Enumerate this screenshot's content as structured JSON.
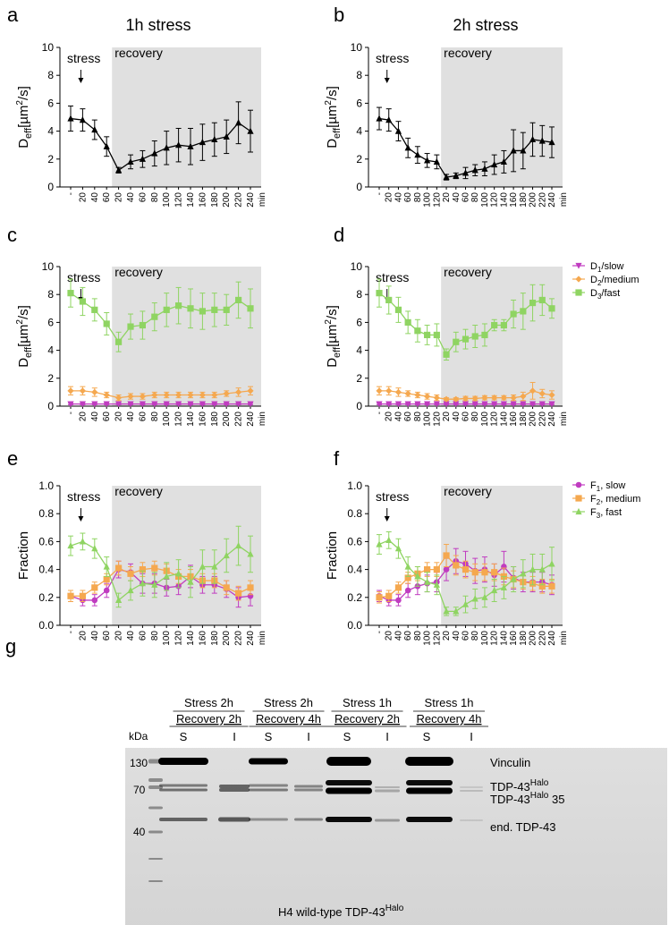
{
  "labels": {
    "a": "a",
    "b": "b",
    "c": "c",
    "d": "d",
    "e": "e",
    "f": "f",
    "g": "g",
    "title_1h": "1h stress",
    "title_2h": "2h stress",
    "stress": "stress",
    "recovery": "recovery",
    "ylabel_deff": "D",
    "ylabel_deff_sub": "eff",
    "ylabel_deff_unit": "[µm",
    "ylabel_deff_sup": "2",
    "ylabel_deff_tail": "/s]",
    "ylabel_fraction": "Fraction",
    "min": "min"
  },
  "legend_d": [
    {
      "pre": "D",
      "sub": "1",
      "post": "/slow",
      "color": "#c03cc0",
      "marker": "tri-down"
    },
    {
      "pre": "D",
      "sub": "2",
      "post": "/medium",
      "color": "#f5a84f",
      "marker": "diamond"
    },
    {
      "pre": "D",
      "sub": "3",
      "post": "/fast",
      "color": "#8fd462",
      "marker": "square"
    }
  ],
  "legend_f": [
    {
      "pre": "F",
      "sub": "1",
      "post": ", slow",
      "color": "#c03cc0",
      "marker": "circle"
    },
    {
      "pre": "F",
      "sub": "2",
      "post": ", medium",
      "color": "#f5a84f",
      "marker": "square"
    },
    {
      "pre": "F",
      "sub": "3",
      "post": ", fast",
      "color": "#8fd462",
      "marker": "triangle"
    }
  ],
  "colors": {
    "black": "#000000",
    "magenta": "#c03cc0",
    "orange": "#f5a84f",
    "green": "#8fd462",
    "shade": "#e0e0e0"
  },
  "chart_data": [
    {
      "id": "a",
      "type": "line",
      "title": "1h stress",
      "ylabel": "Deff[µm2/s]",
      "ylim": [
        0,
        10
      ],
      "yticks": [
        0,
        2,
        4,
        6,
        8,
        10
      ],
      "xticks": [
        "-",
        "20",
        "40",
        "60",
        "20",
        "40",
        "60",
        "80",
        "100",
        "120",
        "140",
        "160",
        "180",
        "200",
        "220",
        "240"
      ],
      "recovery_start_index": 3,
      "series": [
        {
          "name": "Deff",
          "color": "#000000",
          "marker": "triangle",
          "values": [
            4.9,
            4.8,
            4.1,
            2.9,
            1.2,
            1.8,
            2.0,
            2.4,
            2.8,
            3.0,
            2.9,
            3.2,
            3.4,
            3.6,
            4.6,
            4.0
          ],
          "errors": [
            0.9,
            0.8,
            0.7,
            0.7,
            0.2,
            0.5,
            0.6,
            0.9,
            1.2,
            1.2,
            1.3,
            1.3,
            1.2,
            1.2,
            1.5,
            1.5
          ]
        }
      ]
    },
    {
      "id": "b",
      "type": "line",
      "title": "2h stress",
      "ylabel": "Deff[µm2/s]",
      "ylim": [
        0,
        10
      ],
      "yticks": [
        0,
        2,
        4,
        6,
        8,
        10
      ],
      "xticks": [
        "-",
        "20",
        "40",
        "60",
        "80",
        "100",
        "120",
        "20",
        "40",
        "60",
        "80",
        "100",
        "120",
        "140",
        "160",
        "180",
        "200",
        "220",
        "240"
      ],
      "recovery_start_index": 6,
      "series": [
        {
          "name": "Deff",
          "color": "#000000",
          "marker": "triangle",
          "values": [
            4.9,
            4.8,
            4.0,
            2.8,
            2.3,
            1.9,
            1.8,
            0.7,
            0.8,
            1.0,
            1.2,
            1.3,
            1.6,
            1.8,
            2.6,
            2.6,
            3.4,
            3.3,
            3.2
          ],
          "errors": [
            0.8,
            0.8,
            0.7,
            0.7,
            0.6,
            0.5,
            0.5,
            0.2,
            0.2,
            0.4,
            0.4,
            0.5,
            0.7,
            0.8,
            1.5,
            1.3,
            1.2,
            1.1,
            1.1
          ]
        }
      ]
    },
    {
      "id": "c",
      "type": "line",
      "ylabel": "Deff[µm2/s]",
      "ylim": [
        0,
        10
      ],
      "yticks": [
        0,
        2,
        4,
        6,
        8,
        10
      ],
      "xticks": [
        "-",
        "20",
        "40",
        "60",
        "20",
        "40",
        "60",
        "80",
        "100",
        "120",
        "140",
        "160",
        "180",
        "200",
        "220",
        "240"
      ],
      "recovery_start_index": 3,
      "series": [
        {
          "name": "D1/slow",
          "color": "#c03cc0",
          "marker": "tri-down",
          "values": [
            0.15,
            0.15,
            0.15,
            0.15,
            0.15,
            0.15,
            0.15,
            0.15,
            0.15,
            0.15,
            0.15,
            0.15,
            0.15,
            0.15,
            0.15,
            0.15
          ],
          "errors": [
            0.05,
            0.05,
            0.05,
            0.05,
            0.05,
            0.05,
            0.05,
            0.05,
            0.05,
            0.05,
            0.05,
            0.05,
            0.05,
            0.05,
            0.05,
            0.05
          ]
        },
        {
          "name": "D2/medium",
          "color": "#f5a84f",
          "marker": "diamond",
          "values": [
            1.1,
            1.1,
            1.0,
            0.8,
            0.6,
            0.7,
            0.7,
            0.8,
            0.8,
            0.8,
            0.8,
            0.8,
            0.8,
            0.9,
            1.0,
            1.1
          ],
          "errors": [
            0.3,
            0.3,
            0.3,
            0.2,
            0.2,
            0.2,
            0.2,
            0.2,
            0.2,
            0.2,
            0.2,
            0.2,
            0.2,
            0.2,
            0.3,
            0.3
          ]
        },
        {
          "name": "D3/fast",
          "color": "#8fd462",
          "marker": "square",
          "values": [
            8.1,
            7.5,
            6.9,
            5.9,
            4.6,
            5.7,
            5.8,
            6.4,
            6.9,
            7.2,
            7.0,
            6.8,
            6.9,
            6.9,
            7.6,
            7.0
          ],
          "errors": [
            1.0,
            1.0,
            0.8,
            0.8,
            0.7,
            0.9,
            1.0,
            1.0,
            1.2,
            1.3,
            1.4,
            1.3,
            1.2,
            1.1,
            1.3,
            1.4
          ]
        }
      ]
    },
    {
      "id": "d",
      "type": "line",
      "ylabel": "Deff[µm2/s]",
      "ylim": [
        0,
        10
      ],
      "yticks": [
        0,
        2,
        4,
        6,
        8,
        10
      ],
      "xticks": [
        "-",
        "20",
        "40",
        "60",
        "80",
        "100",
        "120",
        "20",
        "40",
        "60",
        "80",
        "100",
        "120",
        "140",
        "160",
        "180",
        "200",
        "220",
        "240"
      ],
      "recovery_start_index": 6,
      "series": [
        {
          "name": "D1/slow",
          "color": "#c03cc0",
          "marker": "tri-down",
          "values": [
            0.15,
            0.15,
            0.15,
            0.15,
            0.15,
            0.15,
            0.15,
            0.15,
            0.15,
            0.15,
            0.15,
            0.15,
            0.15,
            0.15,
            0.15,
            0.15,
            0.15,
            0.15,
            0.15
          ],
          "errors": [
            0.05,
            0.05,
            0.05,
            0.05,
            0.05,
            0.05,
            0.05,
            0.05,
            0.05,
            0.05,
            0.05,
            0.05,
            0.05,
            0.05,
            0.05,
            0.05,
            0.05,
            0.05,
            0.05
          ]
        },
        {
          "name": "D2/medium",
          "color": "#f5a84f",
          "marker": "diamond",
          "values": [
            1.1,
            1.1,
            1.0,
            0.9,
            0.8,
            0.7,
            0.6,
            0.5,
            0.5,
            0.55,
            0.55,
            0.6,
            0.6,
            0.6,
            0.6,
            0.7,
            1.1,
            0.9,
            0.8
          ],
          "errors": [
            0.3,
            0.3,
            0.3,
            0.2,
            0.2,
            0.2,
            0.2,
            0.1,
            0.1,
            0.15,
            0.15,
            0.15,
            0.15,
            0.15,
            0.2,
            0.3,
            0.6,
            0.3,
            0.3
          ]
        },
        {
          "name": "D3/fast",
          "color": "#8fd462",
          "marker": "square",
          "values": [
            8.1,
            7.6,
            6.9,
            6.0,
            5.4,
            5.1,
            5.1,
            3.7,
            4.6,
            4.8,
            5.0,
            5.1,
            5.8,
            5.8,
            6.6,
            6.8,
            7.4,
            7.6,
            7.0
          ],
          "errors": [
            1.0,
            1.0,
            0.9,
            0.8,
            0.8,
            0.7,
            0.8,
            0.4,
            0.7,
            0.7,
            0.8,
            0.8,
            0.4,
            0.4,
            1.0,
            1.3,
            1.3,
            1.1,
            0.7
          ]
        }
      ]
    },
    {
      "id": "e",
      "type": "line",
      "ylabel": "Fraction",
      "ylim": [
        0,
        1.0
      ],
      "yticks": [
        0.0,
        0.2,
        0.4,
        0.6,
        0.8,
        1.0
      ],
      "xticks": [
        "-",
        "20",
        "40",
        "60",
        "20",
        "40",
        "60",
        "80",
        "100",
        "120",
        "140",
        "160",
        "180",
        "200",
        "220",
        "240"
      ],
      "recovery_start_index": 3,
      "series": [
        {
          "name": "F1, slow",
          "color": "#c03cc0",
          "marker": "circle",
          "values": [
            0.21,
            0.18,
            0.18,
            0.25,
            0.4,
            0.38,
            0.3,
            0.3,
            0.27,
            0.28,
            0.35,
            0.29,
            0.29,
            0.26,
            0.2,
            0.21
          ],
          "errors": [
            0.04,
            0.04,
            0.04,
            0.05,
            0.06,
            0.06,
            0.07,
            0.07,
            0.06,
            0.06,
            0.08,
            0.06,
            0.06,
            0.06,
            0.07,
            0.07
          ]
        },
        {
          "name": "F2, medium",
          "color": "#f5a84f",
          "marker": "square",
          "values": [
            0.21,
            0.21,
            0.27,
            0.33,
            0.41,
            0.37,
            0.4,
            0.41,
            0.39,
            0.35,
            0.35,
            0.32,
            0.32,
            0.27,
            0.23,
            0.27
          ],
          "errors": [
            0.04,
            0.04,
            0.04,
            0.04,
            0.05,
            0.05,
            0.05,
            0.05,
            0.05,
            0.05,
            0.05,
            0.05,
            0.05,
            0.05,
            0.05,
            0.05
          ]
        },
        {
          "name": "F3, fast",
          "color": "#8fd462",
          "marker": "triangle",
          "values": [
            0.57,
            0.6,
            0.55,
            0.42,
            0.18,
            0.25,
            0.3,
            0.29,
            0.35,
            0.37,
            0.31,
            0.42,
            0.42,
            0.5,
            0.57,
            0.51
          ],
          "errors": [
            0.07,
            0.06,
            0.07,
            0.07,
            0.05,
            0.07,
            0.09,
            0.09,
            0.1,
            0.1,
            0.11,
            0.12,
            0.12,
            0.12,
            0.14,
            0.13
          ]
        }
      ]
    },
    {
      "id": "f",
      "type": "line",
      "ylabel": "Fraction",
      "ylim": [
        0,
        1.0
      ],
      "yticks": [
        0.0,
        0.2,
        0.4,
        0.6,
        0.8,
        1.0
      ],
      "xticks": [
        "-",
        "20",
        "40",
        "60",
        "80",
        "100",
        "120",
        "20",
        "40",
        "60",
        "80",
        "100",
        "120",
        "140",
        "160",
        "180",
        "200",
        "220",
        "240"
      ],
      "recovery_start_index": 6,
      "series": [
        {
          "name": "F1, slow",
          "color": "#c03cc0",
          "marker": "circle",
          "values": [
            0.21,
            0.18,
            0.18,
            0.25,
            0.28,
            0.3,
            0.31,
            0.4,
            0.46,
            0.44,
            0.39,
            0.4,
            0.36,
            0.42,
            0.34,
            0.31,
            0.31,
            0.31,
            0.29
          ],
          "errors": [
            0.04,
            0.04,
            0.04,
            0.05,
            0.06,
            0.06,
            0.07,
            0.08,
            0.09,
            0.09,
            0.09,
            0.09,
            0.08,
            0.11,
            0.08,
            0.07,
            0.07,
            0.07,
            0.07
          ]
        },
        {
          "name": "F2, medium",
          "color": "#f5a84f",
          "marker": "square",
          "values": [
            0.2,
            0.21,
            0.27,
            0.34,
            0.37,
            0.4,
            0.4,
            0.5,
            0.43,
            0.4,
            0.38,
            0.38,
            0.38,
            0.35,
            0.33,
            0.31,
            0.3,
            0.28,
            0.28
          ],
          "errors": [
            0.04,
            0.04,
            0.04,
            0.04,
            0.05,
            0.05,
            0.05,
            0.08,
            0.07,
            0.06,
            0.06,
            0.06,
            0.06,
            0.06,
            0.06,
            0.05,
            0.05,
            0.05,
            0.05
          ]
        },
        {
          "name": "F3, fast",
          "color": "#8fd462",
          "marker": "triangle",
          "values": [
            0.58,
            0.61,
            0.55,
            0.42,
            0.35,
            0.31,
            0.29,
            0.1,
            0.1,
            0.15,
            0.19,
            0.2,
            0.25,
            0.27,
            0.33,
            0.37,
            0.4,
            0.4,
            0.44
          ],
          "errors": [
            0.07,
            0.06,
            0.07,
            0.07,
            0.07,
            0.07,
            0.07,
            0.03,
            0.03,
            0.06,
            0.07,
            0.07,
            0.08,
            0.08,
            0.09,
            0.1,
            0.11,
            0.11,
            0.12
          ]
        }
      ]
    }
  ],
  "blot": {
    "header_top": [
      "Stress 2h",
      "Stress 2h",
      "Stress 1h",
      "Stress 1h"
    ],
    "header_bottom": [
      "Recovery 2h",
      "Recovery 4h",
      "Recovery 2h",
      "Recovery 4h"
    ],
    "lanes": [
      "S",
      "I",
      "S",
      "I",
      "S",
      "I",
      "S",
      "I"
    ],
    "kda_label": "kDa",
    "markers": [
      "130",
      "70",
      "40"
    ],
    "bands": {
      "vinculin": "Vinculin",
      "tdp_halo_pre": "TDP-43",
      "tdp_halo_sup": "Halo",
      "tdp_halo35_pre": "TDP-43",
      "tdp_halo35_sup": "Halo",
      "tdp_halo35_post": " 35",
      "end_tdp": "end. TDP-43"
    },
    "caption_pre": "H4 wild-type TDP-43",
    "caption_sup": "Halo"
  }
}
